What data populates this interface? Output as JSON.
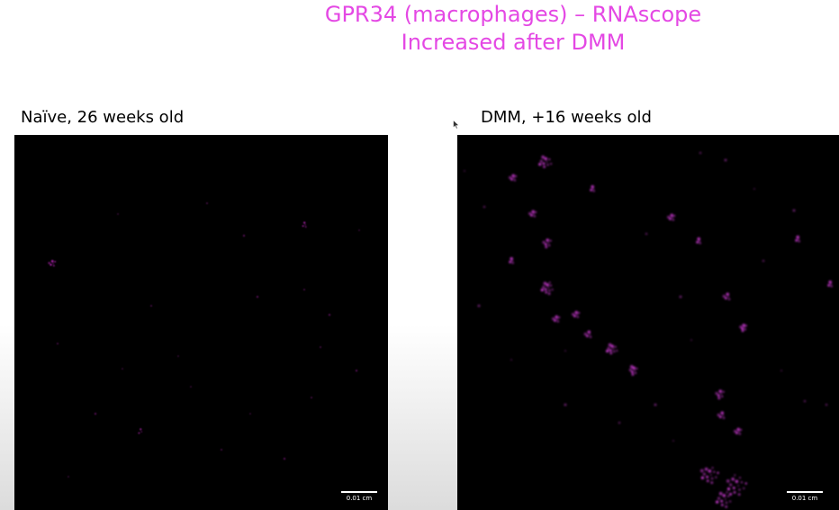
{
  "slide": {
    "title_line_1": "GPR34 (macrophages) – RNAscope",
    "title_line_2": "Increased after DMM",
    "title_color": "#e448e4"
  },
  "panels": {
    "left": {
      "label": "Naïve, 26 weeks old",
      "scalebar_label": "0.01 cm",
      "signal_color": "#d02ad0"
    },
    "right": {
      "label": "DMM, +16 weeks old",
      "scalebar_label": "0.01 cm",
      "signal_color": "#e040e8"
    }
  },
  "icons": {
    "cursor": "mouse-pointer-icon"
  }
}
